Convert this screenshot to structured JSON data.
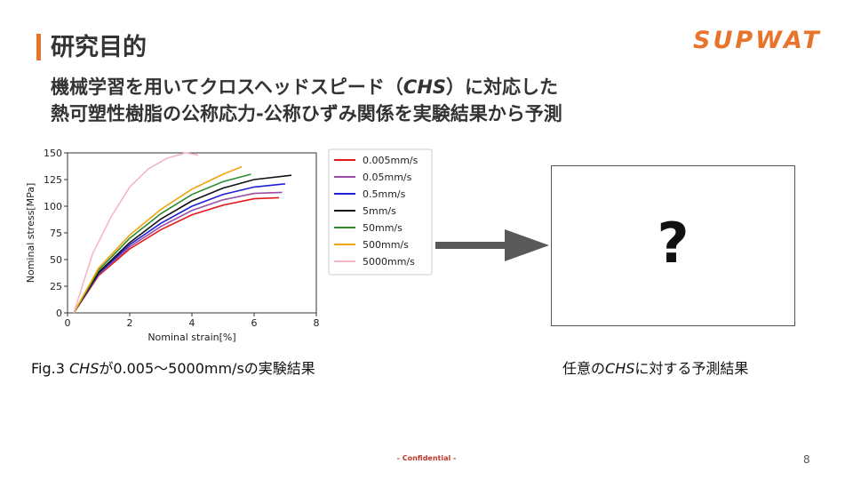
{
  "slide": {
    "title": "研究目的",
    "logo_text": "SUPWAT",
    "subtitle_line1_pre": "機械学習を用いてクロスヘッドスピード（",
    "subtitle_line1_em": "CHS",
    "subtitle_line1_post": "）に対応した",
    "subtitle_line2": "熱可塑性樹脂の公称応力-公称ひずみ関係を実験結果から予測",
    "caption_left_pre": "Fig.3 ",
    "caption_left_em": "CHS",
    "caption_left_post": "が0.005〜5000mm/sの実験結果",
    "caption_right_pre": "任意の",
    "caption_right_mid": "CHS",
    "caption_right_post": "に対する予測結果",
    "question_mark": "?",
    "footer": "- Confidential -",
    "page_number": "8",
    "accent_color": "#e8732a"
  },
  "chart_data": {
    "type": "line",
    "xlabel": "Nominal strain[%]",
    "ylabel": "Nominal stress[MPa]",
    "xlim": [
      0,
      8
    ],
    "ylim": [
      0,
      150
    ],
    "xticks": [
      "0",
      "2",
      "4",
      "6",
      "8"
    ],
    "yticks": [
      "0",
      "25",
      "50",
      "75",
      "100",
      "125",
      "150"
    ],
    "grid": false,
    "legend_position": "right",
    "series": [
      {
        "name": "0.005mm/s",
        "color": "#e41a1c",
        "x": [
          0.2,
          1,
          2,
          3,
          4,
          5,
          6,
          6.8
        ],
        "y": [
          0,
          35,
          60,
          78,
          92,
          101,
          107,
          108
        ]
      },
      {
        "name": "0.05mm/s",
        "color": "#984ea3",
        "x": [
          0.2,
          1,
          2,
          3,
          4,
          5,
          6,
          6.9
        ],
        "y": [
          0,
          36,
          62,
          81,
          96,
          106,
          112,
          113
        ]
      },
      {
        "name": "0.5mm/s",
        "color": "#1f1fd6",
        "x": [
          0.2,
          1,
          2,
          3,
          4,
          5,
          6,
          7.0
        ],
        "y": [
          0,
          37,
          64,
          84,
          100,
          111,
          118,
          121
        ]
      },
      {
        "name": "5mm/s",
        "color": "#111111",
        "x": [
          0.2,
          1,
          2,
          3,
          4,
          5,
          6,
          7.2
        ],
        "y": [
          0,
          38,
          66,
          88,
          105,
          117,
          125,
          129
        ]
      },
      {
        "name": "50mm/s",
        "color": "#2e8b2e",
        "x": [
          0.2,
          1,
          2,
          3,
          4,
          5,
          5.9
        ],
        "y": [
          0,
          40,
          70,
          93,
          111,
          123,
          130
        ]
      },
      {
        "name": "500mm/s",
        "color": "#f0a30a",
        "x": [
          0.2,
          1,
          2,
          3,
          4,
          5,
          5.6
        ],
        "y": [
          0,
          42,
          73,
          97,
          116,
          130,
          137
        ]
      },
      {
        "name": "5000mm/s",
        "color": "#f4b8c5",
        "x": [
          0.2,
          0.8,
          1.4,
          2,
          2.6,
          3.2,
          3.8,
          4.2
        ],
        "y": [
          0,
          55,
          90,
          118,
          135,
          145,
          150,
          148
        ]
      }
    ]
  }
}
